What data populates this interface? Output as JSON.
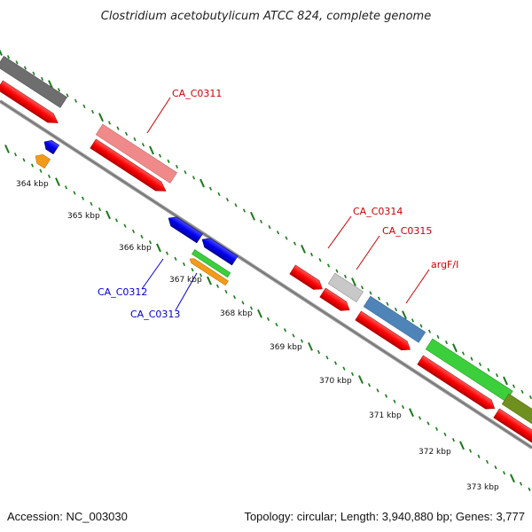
{
  "title": "Clostridium acetobutylicum ATCC 824, complete genome",
  "footer": {
    "accession": "Accession: NC_003030",
    "summary": "Topology: circular; Length: 3,940,880 bp; Genes: 3,777"
  },
  "scale": {
    "tick_labels": [
      "364 kbp",
      "365 kbp",
      "366 kbp",
      "367 kbp",
      "368 kbp",
      "369 kbp",
      "370 kbp",
      "371 kbp",
      "372 kbp",
      "373 kbp"
    ]
  },
  "gene_labels": {
    "ca_c0311": "CA_C0311",
    "ca_c0312": "CA_C0312",
    "ca_c0313": "CA_C0313",
    "ca_c0314": "CA_C0314",
    "ca_c0315": "CA_C0315",
    "argf": "argF/I"
  },
  "colors": {
    "forward_cds": "#ff0000",
    "reverse_cds": "#0000ff",
    "label_forward": "#cc0000",
    "label_reverse": "#0000cc",
    "backbone": "#888888",
    "tick": "#1a7a1a"
  }
}
